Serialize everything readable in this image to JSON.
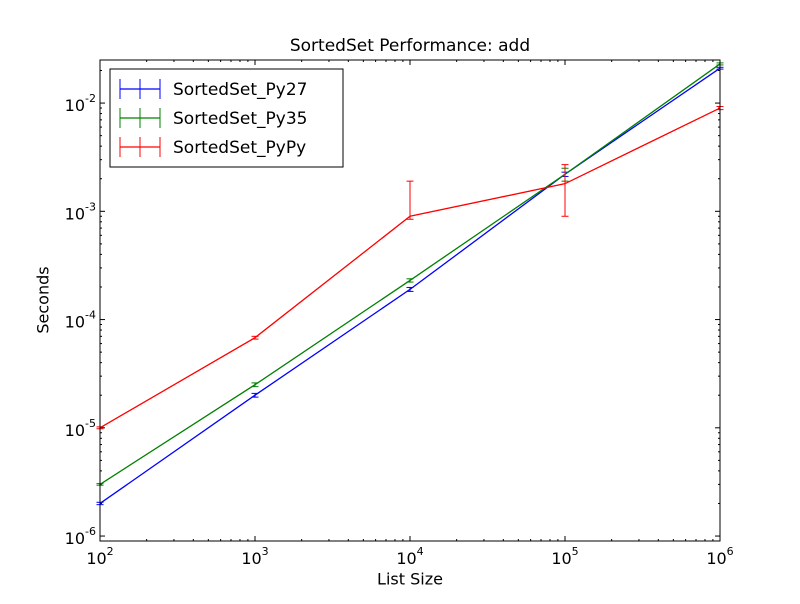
{
  "chart_data": {
    "type": "line",
    "title": "SortedSet Performance: add",
    "x_label": "List Size",
    "y_label": "Seconds",
    "x": [
      100,
      1000,
      10000,
      100000,
      1000000
    ],
    "xscale": "log",
    "yscale": "log",
    "xlim": [
      100,
      1000000
    ],
    "ylim": [
      9e-07,
      0.025
    ],
    "xticks": [
      {
        "value": 100,
        "label": "10",
        "exponent": "2"
      },
      {
        "value": 1000,
        "label": "10",
        "exponent": "3"
      },
      {
        "value": 10000,
        "label": "10",
        "exponent": "4"
      },
      {
        "value": 100000,
        "label": "10",
        "exponent": "5"
      },
      {
        "value": 1000000,
        "label": "10",
        "exponent": "6"
      }
    ],
    "yticks": [
      {
        "value": 1e-06,
        "label": "10",
        "exponent": "-6"
      },
      {
        "value": 1e-05,
        "label": "10",
        "exponent": "-5"
      },
      {
        "value": 0.0001,
        "label": "10",
        "exponent": "-4"
      },
      {
        "value": 0.001,
        "label": "10",
        "exponent": "-3"
      },
      {
        "value": 0.01,
        "label": "10",
        "exponent": "-2"
      }
    ],
    "legend": "upper-left",
    "series": [
      {
        "name": "SortedSet_Py27",
        "color": "#0000ff",
        "values": [
          2e-06,
          2e-05,
          0.00019,
          0.0022,
          0.021
        ],
        "errors": [
          5e-08,
          8e-07,
          8e-06,
          0.0001,
          0.0004
        ]
      },
      {
        "name": "SortedSet_Py35",
        "color": "#008000",
        "values": [
          3e-06,
          2.5e-05,
          0.00023,
          0.0022,
          0.023
        ],
        "errors": [
          5e-08,
          1e-06,
          8e-06,
          0.0003,
          0.0005
        ]
      },
      {
        "name": "SortedSet_PyPy",
        "color": "#ff0000",
        "values": [
          1e-05,
          6.8e-05,
          0.0009,
          0.0018,
          0.009
        ],
        "errors": [
          2e-07,
          2e-06,
          0.001,
          0.0009,
          0.0003
        ]
      }
    ]
  }
}
